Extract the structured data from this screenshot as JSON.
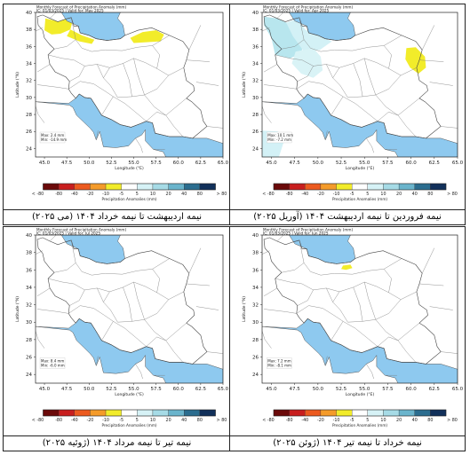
{
  "panels": [
    {
      "id": "top-left",
      "header_line1": "Monthly Forecast of Precipitation Anomaly (mm)",
      "header_line2": "IC: 01/03/2025 | Valid for: May 2025",
      "stat_max": "Max: 2.4 mm",
      "stat_min": "Min: -14.9 mm",
      "caption": "نیمه اردیبهشت تا نیمه خرداد ۱۴۰۴ (می ۲۰۲۵)",
      "anomaly_blobs": [
        {
          "region": "northwest-azerbaijan",
          "color": "#f2ec2a"
        },
        {
          "region": "northwest-tail",
          "color": "#f2ec2a"
        },
        {
          "region": "northeast-khorasan",
          "color": "#f2ec2a"
        }
      ]
    },
    {
      "id": "top-right",
      "header_line1": "Monthly Forecast of Precipitation Anomaly (mm)",
      "header_line2": "IC: 01/03/2025 | Valid for: Apr 2025",
      "stat_max": "Max: 10.1 mm",
      "stat_min": "Min: -7.2 mm",
      "caption": "نیمه فروردین تا نیمه اردیبهشت ۱۴۰۴ (آوریل ۲۰۲۵)",
      "anomaly_blobs": [
        {
          "region": "northwest-zagros",
          "color": "#b8e6ee"
        },
        {
          "region": "northwest-wet",
          "color": "#d3f1f6"
        },
        {
          "region": "west-central",
          "color": "#d9f3f6"
        },
        {
          "region": "sw-corner",
          "color": "#d3f1f6"
        },
        {
          "region": "east-khorasan",
          "color": "#f2ec2a"
        }
      ]
    },
    {
      "id": "bottom-left",
      "header_line1": "Monthly Forecast of Precipitation Anomaly (mm)",
      "header_line2": "IC: 01/03/2025 | Valid for: Jul 2025",
      "stat_max": "Max: 8.4 mm",
      "stat_min": "Min: -6.0 mm",
      "caption": "نیمه تیر تا نیمه مرداد ۱۴۰۴ (ژوئیه ۲۰۲۵)",
      "anomaly_blobs": []
    },
    {
      "id": "bottom-right",
      "header_line1": "Monthly Forecast of Precipitation Anomaly (mm)",
      "header_line2": "IC: 01/03/2025 | Valid for: Jun 2025",
      "stat_max": "Max: 7.2 mm",
      "stat_min": "Min: -8.1 mm",
      "caption": "نیمه خرداد تا نیمه تیر ۱۴۰۴ (ژوئن ۲۰۲۵)",
      "anomaly_blobs": [
        {
          "region": "north-mazandaran",
          "color": "#f2ec2a"
        }
      ]
    }
  ],
  "chart_data": {
    "type": "heatmap",
    "xlabel": "Longitude (°E)",
    "ylabel": "Latitude (°N)",
    "xlim": [
      44,
      65
    ],
    "ylim": [
      23,
      40
    ],
    "x_ticks": [
      "45.0",
      "47.5",
      "50.0",
      "52.5",
      "55.0",
      "57.5",
      "60.0",
      "62.5",
      "65.0"
    ],
    "y_ticks": [
      "24",
      "26",
      "28",
      "30",
      "32",
      "34",
      "36",
      "38",
      "40"
    ],
    "colorbar_title": "Precipitation Anomalies (mm)",
    "colorbar_labels": [
      "< -80",
      "-80",
      "-40",
      "-20",
      "-10",
      "-5",
      "5",
      "10",
      "20",
      "40",
      "80",
      "> 80"
    ],
    "colorbar_colors": [
      "#6b0a0a",
      "#c81e1e",
      "#ec5a1f",
      "#f49b2a",
      "#f2ec2a",
      "#ffffff",
      "#d6f2f6",
      "#a6dbe6",
      "#6ab4cc",
      "#2b6d8f",
      "#11305a"
    ],
    "sea_color": "#8ec9ef",
    "water_bodies": [
      "Caspian Sea",
      "Persian Gulf",
      "Gulf of Oman"
    ]
  }
}
